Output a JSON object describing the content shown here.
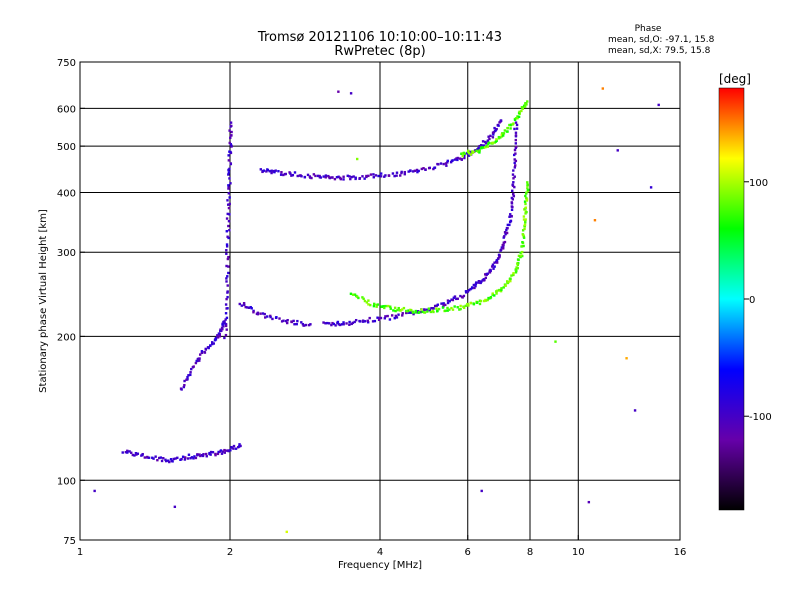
{
  "chart_data": {
    "type": "scatter",
    "title": "Tromsø 20121106 10:10:00–10:11:43",
    "subtitle": "RwPretec (8p)",
    "xlabel": "Frequency [MHz]",
    "ylabel": "Stationary phase Virtual Height [km]",
    "xscale": "log",
    "yscale": "log",
    "xlim": [
      1,
      16
    ],
    "ylim": [
      75,
      750
    ],
    "x_ticks": [
      1,
      2,
      4,
      6,
      8,
      10,
      16
    ],
    "y_ticks": [
      75,
      100,
      200,
      300,
      400,
      500,
      600,
      750
    ],
    "x_grid": [
      2,
      4,
      6,
      8,
      10
    ],
    "y_grid": [
      100,
      200,
      300,
      400,
      500,
      600
    ],
    "grid": true,
    "phase_summary": {
      "heading": "Phase",
      "line_o": "mean, sd,O: -97.1, 15.8",
      "line_x": "mean, sd,X:  79.5, 15.8"
    },
    "colorbar": {
      "label": "[deg]",
      "ticks": [
        100,
        0,
        -100
      ],
      "min": -180,
      "max": 180,
      "colors": [
        "#000000",
        "#6600aa",
        "#0000ff",
        "#00ffff",
        "#00ff00",
        "#ffff00",
        "#ff0000"
      ]
    },
    "series": [
      {
        "phase_deg": -100,
        "traces": [
          {
            "f": [
              3.1,
              3.4,
              3.8,
              4.3,
              4.9,
              5.4,
              5.9,
              6.3,
              6.6,
              6.9,
              7.1,
              7.3,
              7.4,
              7.45,
              7.5
            ],
            "h": [
              212,
              213,
              216,
              220,
              226,
              234,
              245,
              258,
              272,
              290,
              315,
              350,
              400,
              470,
              560
            ]
          },
          {
            "f": [
              2.1,
              2.3,
              2.6,
              2.9
            ],
            "h": [
              235,
              222,
              215,
              212
            ]
          },
          {
            "f": [
              2.3,
              2.5,
              2.8,
              3.1,
              3.4,
              3.8,
              4.3,
              4.8,
              5.4,
              5.9,
              6.3,
              6.7,
              7.0
            ],
            "h": [
              445,
              440,
              435,
              430,
              430,
              432,
              437,
              445,
              458,
              475,
              495,
              525,
              565
            ]
          },
          {
            "f": [
              1.96,
              1.97,
              1.98,
              1.99,
              2.0,
              2.01
            ],
            "h": [
              200,
              250,
              320,
              400,
              480,
              560
            ]
          },
          {
            "f": [
              1.6,
              1.7,
              1.8,
              1.9,
              1.95
            ],
            "h": [
              155,
              175,
              190,
              200,
              215
            ]
          },
          {
            "f": [
              1.22,
              1.35,
              1.5,
              1.65,
              1.8,
              1.95,
              2.1
            ],
            "h": [
              115,
              112,
              110,
              112,
              113,
              115,
              118
            ]
          }
        ]
      },
      {
        "phase_deg": 80,
        "traces": [
          {
            "f": [
              3.5,
              3.9,
              4.3,
              4.7,
              5.2,
              5.8,
              6.3,
              6.8,
              7.2,
              7.5,
              7.7,
              7.8,
              7.85,
              7.9
            ],
            "h": [
              245,
              232,
              228,
              226,
              227,
              230,
              235,
              245,
              258,
              275,
              300,
              340,
              380,
              420
            ]
          },
          {
            "f": [
              5.8,
              6.3,
              6.8,
              7.2,
              7.6,
              7.9
            ],
            "h": [
              478,
              490,
              510,
              540,
              580,
              620
            ]
          }
        ]
      }
    ],
    "scattered_points": [
      {
        "f": 3.3,
        "h": 650,
        "phase": -120
      },
      {
        "f": 3.5,
        "h": 645,
        "phase": -100
      },
      {
        "f": 3.6,
        "h": 470,
        "phase": 90
      },
      {
        "f": 6.4,
        "h": 95,
        "phase": -100
      },
      {
        "f": 10.5,
        "h": 90,
        "phase": -110
      },
      {
        "f": 10.8,
        "h": 350,
        "phase": 150
      },
      {
        "f": 11.2,
        "h": 660,
        "phase": 150
      },
      {
        "f": 12.0,
        "h": 490,
        "phase": -100
      },
      {
        "f": 12.5,
        "h": 180,
        "phase": 140
      },
      {
        "f": 13.0,
        "h": 140,
        "phase": -100
      },
      {
        "f": 14.0,
        "h": 410,
        "phase": -90
      },
      {
        "f": 14.5,
        "h": 610,
        "phase": -100
      },
      {
        "f": 9.0,
        "h": 195,
        "phase": 80
      },
      {
        "f": 1.07,
        "h": 95,
        "phase": -100
      },
      {
        "f": 1.55,
        "h": 88,
        "phase": -100
      },
      {
        "f": 2.6,
        "h": 78,
        "phase": 110
      }
    ]
  }
}
